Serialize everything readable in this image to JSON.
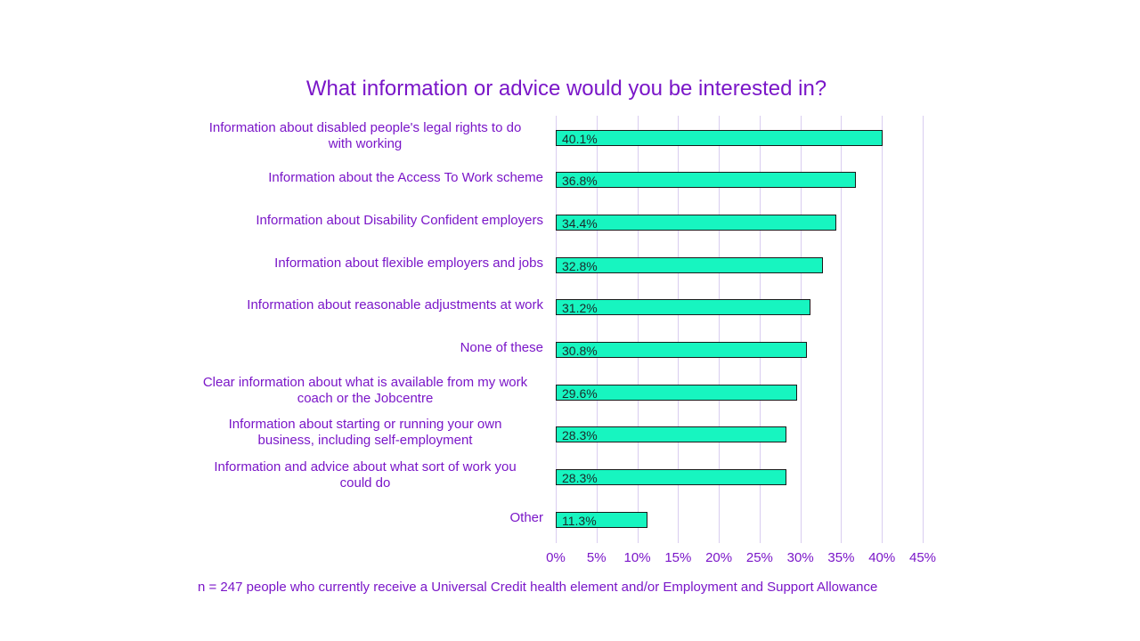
{
  "chart_data": {
    "type": "bar",
    "orientation": "horizontal",
    "title": "What information or advice would you be interested in?",
    "categories": [
      "Information about disabled people's legal rights to do with working",
      "Information about the Access To Work scheme",
      "Information about Disability Confident employers",
      "Information about flexible employers and jobs",
      "Information about reasonable adjustments at work",
      "None of these",
      "Clear information about what is available from my work coach or the Jobcentre",
      "Information about starting or running your own business, including self-employment",
      "Information and advice about what sort of work you could do",
      "Other"
    ],
    "category_lines": [
      [
        "Information about disabled people's legal rights to do",
        "with working"
      ],
      [
        "Information about the Access To Work scheme"
      ],
      [
        "Information about Disability Confident employers"
      ],
      [
        "Information about flexible employers and jobs"
      ],
      [
        "Information about reasonable adjustments at work"
      ],
      [
        "None of these"
      ],
      [
        "Clear information about what is available from my work",
        "coach or the Jobcentre"
      ],
      [
        "Information about starting or running your own",
        "business, including self-employment"
      ],
      [
        "Information and advice about what sort of work you",
        "could do"
      ],
      [
        "Other"
      ]
    ],
    "values": [
      40.1,
      36.8,
      34.4,
      32.8,
      31.2,
      30.8,
      29.6,
      28.3,
      28.3,
      11.3
    ],
    "value_labels": [
      "40.1%",
      "36.8%",
      "34.4%",
      "32.8%",
      "31.2%",
      "30.8%",
      "29.6%",
      "28.3%",
      "28.3%",
      "11.3%"
    ],
    "xlabel": "",
    "ylabel": "",
    "xlim": [
      0,
      45
    ],
    "x_ticks": [
      "0%",
      "5%",
      "10%",
      "15%",
      "20%",
      "25%",
      "30%",
      "35%",
      "40%",
      "45%"
    ],
    "grid": true,
    "legend": "none",
    "colors": {
      "bar": "#17f5c0",
      "text": "#7a16c8",
      "grid": "#d9cdf0"
    },
    "note": "n = 247 people who currently receive a Universal Credit health element and/or Employment and Support Allowance"
  }
}
